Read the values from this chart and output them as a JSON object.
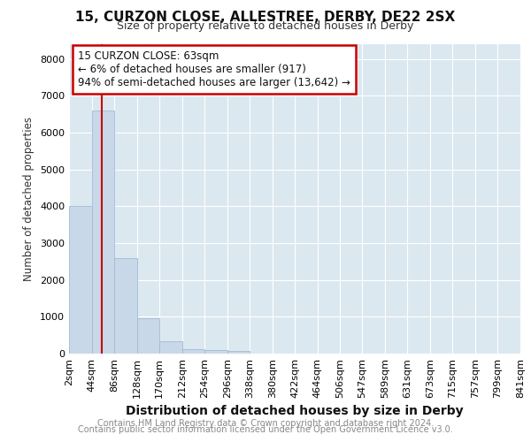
{
  "title1": "15, CURZON CLOSE, ALLESTREE, DERBY, DE22 2SX",
  "title2": "Size of property relative to detached houses in Derby",
  "xlabel": "Distribution of detached houses by size in Derby",
  "ylabel": "Number of detached properties",
  "footnote1": "Contains HM Land Registry data © Crown copyright and database right 2024.",
  "footnote2": "Contains public sector information licensed under the Open Government Licence v3.0.",
  "annotation_line1": "15 CURZON CLOSE: 63sqm",
  "annotation_line2": "← 6% of detached houses are smaller (917)",
  "annotation_line3": "94% of semi-detached houses are larger (13,642) →",
  "bar_color": "#c8d8e8",
  "bar_edge_color": "#a0bcd4",
  "vline_color": "#cc0000",
  "vline_x_data": 63,
  "annotation_box_color": "#cc0000",
  "plot_bg_color": "#dce8f0",
  "categories": [
    "2sqm",
    "44sqm",
    "86sqm",
    "128sqm",
    "170sqm",
    "212sqm",
    "254sqm",
    "296sqm",
    "338sqm",
    "380sqm",
    "422sqm",
    "464sqm",
    "506sqm",
    "547sqm",
    "589sqm",
    "631sqm",
    "673sqm",
    "715sqm",
    "757sqm",
    "799sqm",
    "841sqm"
  ],
  "bin_edges": [
    2,
    44,
    86,
    128,
    170,
    212,
    254,
    296,
    338,
    380,
    422,
    464,
    506,
    547,
    589,
    631,
    673,
    715,
    757,
    799,
    841
  ],
  "values": [
    4000,
    6600,
    2600,
    950,
    330,
    130,
    100,
    80,
    0,
    0,
    0,
    0,
    0,
    0,
    0,
    0,
    0,
    0,
    0,
    0
  ],
  "ylim": [
    0,
    8400
  ],
  "yticks": [
    0,
    1000,
    2000,
    3000,
    4000,
    5000,
    6000,
    7000,
    8000
  ],
  "title1_fontsize": 11,
  "title2_fontsize": 9,
  "xlabel_fontsize": 10,
  "ylabel_fontsize": 8.5,
  "tick_fontsize": 8,
  "footnote_fontsize": 7
}
